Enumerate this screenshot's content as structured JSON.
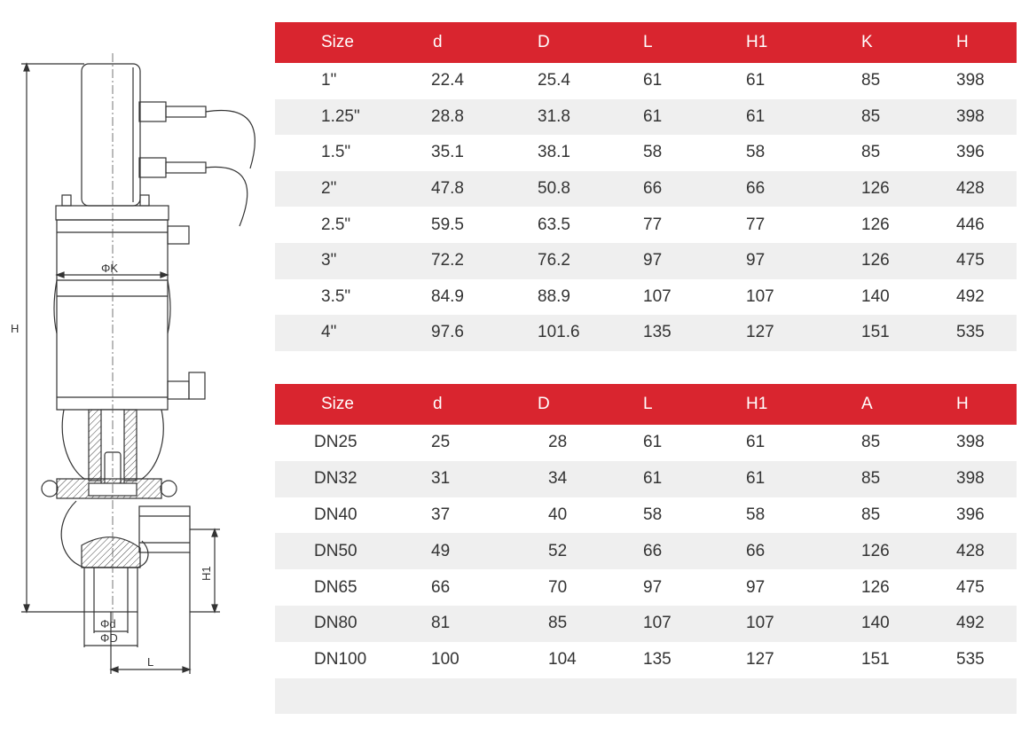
{
  "drawing": {
    "labels": {
      "H": "H",
      "K": "ΦK",
      "H1": "H1",
      "d": "Φd",
      "D": "ΦD",
      "L": "L"
    }
  },
  "tables": [
    {
      "headers": [
        "Size",
        "d",
        "D",
        "L",
        "H1",
        "K",
        "H"
      ],
      "rows": [
        [
          "1\"",
          "22.4",
          "25.4",
          "61",
          "61",
          "85",
          "398"
        ],
        [
          "1.25\"",
          "28.8",
          "31.8",
          "61",
          "61",
          "85",
          "398"
        ],
        [
          "1.5\"",
          "35.1",
          "38.1",
          "58",
          "58",
          "85",
          "396"
        ],
        [
          "2\"",
          "47.8",
          "50.8",
          "66",
          "66",
          "126",
          "428"
        ],
        [
          "2.5\"",
          "59.5",
          "63.5",
          "77",
          "77",
          "126",
          "446"
        ],
        [
          "3\"",
          "72.2",
          "76.2",
          "97",
          "97",
          "126",
          "475"
        ],
        [
          "3.5\"",
          "84.9",
          "88.9",
          "107",
          "107",
          "140",
          "492"
        ],
        [
          "4\"",
          "97.6",
          "101.6",
          "135",
          "127",
          "151",
          "535"
        ]
      ]
    },
    {
      "headers": [
        "Size",
        "d",
        "D",
        "L",
        "H1",
        "A",
        "H"
      ],
      "rows": [
        [
          "DN25",
          "25",
          "28",
          "61",
          "61",
          "85",
          "398"
        ],
        [
          "DN32",
          "31",
          "34",
          "61",
          "61",
          "85",
          "398"
        ],
        [
          "DN40",
          "37",
          "40",
          "58",
          "58",
          "85",
          "396"
        ],
        [
          "DN50",
          "49",
          "52",
          "66",
          "66",
          "126",
          "428"
        ],
        [
          "DN65",
          "66",
          "70",
          "97",
          "97",
          "126",
          "475"
        ],
        [
          "DN80",
          "81",
          "85",
          "107",
          "107",
          "140",
          "492"
        ],
        [
          "DN100",
          "100",
          "104",
          "135",
          "127",
          "151",
          "535"
        ]
      ]
    }
  ]
}
